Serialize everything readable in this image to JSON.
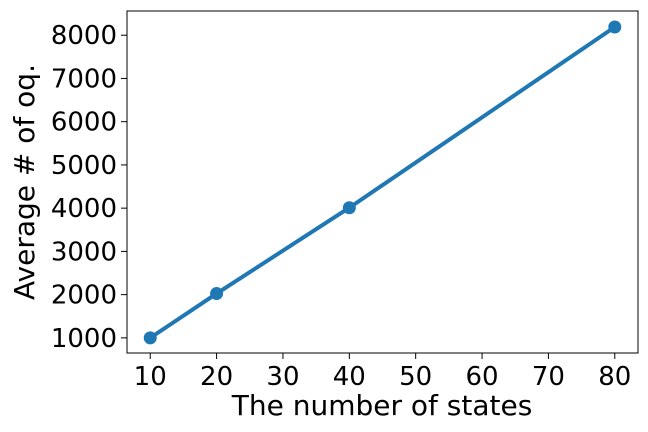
{
  "chart_data": {
    "type": "line",
    "xlabel": "The number of states",
    "ylabel": "Average # of oq.",
    "xlim": [
      6.5,
      83.5
    ],
    "ylim": [
      650,
      8560
    ],
    "xticks": [
      10,
      20,
      30,
      40,
      50,
      60,
      70,
      80
    ],
    "yticks": [
      1000,
      2000,
      3000,
      4000,
      5000,
      6000,
      7000,
      8000
    ],
    "grid": false,
    "series": [
      {
        "color": "#1f77b4",
        "marker": "circle",
        "x": [
          10,
          20,
          40,
          80
        ],
        "y": [
          1000,
          2025,
          4010,
          8190
        ]
      }
    ]
  }
}
